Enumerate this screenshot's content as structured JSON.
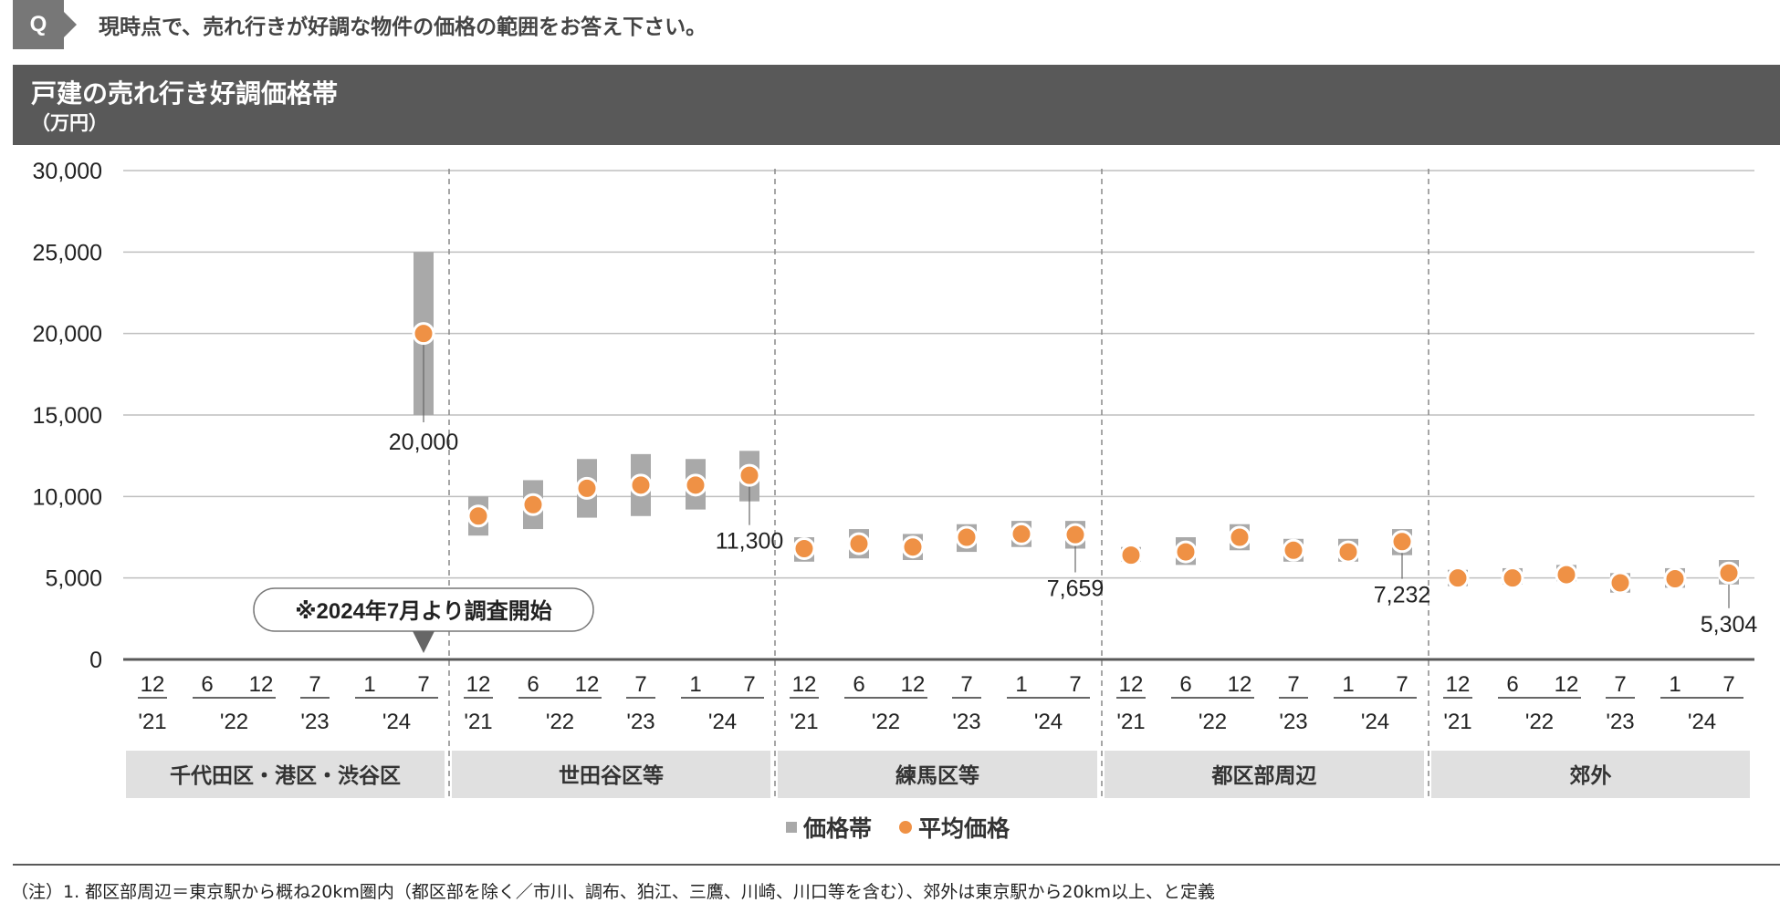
{
  "question": {
    "badge": "Q",
    "text": "現時点で、売れ行きが好調な物件の価格の範囲をお答え下さい。"
  },
  "header": {
    "title": "戸建の売れ行き好調価格帯",
    "unit": "（万円）"
  },
  "chart_data": {
    "type": "bar",
    "ylim": [
      0,
      30000
    ],
    "yticks": [
      "0",
      "5,000",
      "10,000",
      "15,000",
      "20,000",
      "25,000",
      "30,000"
    ],
    "grid": true,
    "legend_position": "bottom-center",
    "legend": {
      "range": "価格帯",
      "average": "平均価格"
    },
    "colors": {
      "range": "#a9a9a9",
      "average": "#ef9145"
    },
    "month_labels": [
      "12",
      "6",
      "12",
      "7",
      "1",
      "7"
    ],
    "year_labels": [
      "'21",
      "'22",
      "'23",
      "'24"
    ],
    "groups": [
      {
        "name": "千代田区・港区・渋谷区",
        "note": "※2024年7月より調査開始",
        "points": [
          null,
          null,
          null,
          null,
          null,
          {
            "low": 15000,
            "high": 25000,
            "avg": 20000,
            "label": "20,000"
          }
        ]
      },
      {
        "name": "世田谷区等",
        "points": [
          {
            "low": 7600,
            "high": 10000,
            "avg": 8800
          },
          {
            "low": 8000,
            "high": 11000,
            "avg": 9500
          },
          {
            "low": 8700,
            "high": 12300,
            "avg": 10500
          },
          {
            "low": 8800,
            "high": 12600,
            "avg": 10700
          },
          {
            "low": 9200,
            "high": 12300,
            "avg": 10700
          },
          {
            "low": 9700,
            "high": 12800,
            "avg": 11300,
            "label": "11,300"
          }
        ]
      },
      {
        "name": "練馬区等",
        "points": [
          {
            "low": 6000,
            "high": 7500,
            "avg": 6800
          },
          {
            "low": 6200,
            "high": 8000,
            "avg": 7100
          },
          {
            "low": 6100,
            "high": 7700,
            "avg": 6900
          },
          {
            "low": 6600,
            "high": 8300,
            "avg": 7500
          },
          {
            "low": 6900,
            "high": 8500,
            "avg": 7700
          },
          {
            "low": 6800,
            "high": 8500,
            "avg": 7659,
            "label": "7,659"
          }
        ]
      },
      {
        "name": "都区部周辺",
        "points": [
          {
            "low": 6000,
            "high": 6900,
            "avg": 6400
          },
          {
            "low": 5800,
            "high": 7500,
            "avg": 6600
          },
          {
            "low": 6700,
            "high": 8300,
            "avg": 7500
          },
          {
            "low": 6000,
            "high": 7400,
            "avg": 6700
          },
          {
            "low": 6000,
            "high": 7400,
            "avg": 6600
          },
          {
            "low": 6400,
            "high": 8000,
            "avg": 7232,
            "label": "7,232"
          }
        ]
      },
      {
        "name": "郊外",
        "points": [
          {
            "low": 4500,
            "high": 5500,
            "avg": 5000
          },
          {
            "low": 4600,
            "high": 5600,
            "avg": 5000
          },
          {
            "low": 4800,
            "high": 5800,
            "avg": 5200
          },
          {
            "low": 4100,
            "high": 5300,
            "avg": 4700
          },
          {
            "low": 4400,
            "high": 5600,
            "avg": 4950
          },
          {
            "low": 4600,
            "high": 6100,
            "avg": 5304,
            "label": "5,304"
          }
        ]
      }
    ]
  },
  "footnote": "（注）1.  都区部周辺＝東京駅から概ね20km圏内（都区部を除く／市川、調布、狛江、三鷹、川崎、川口等を含む）、郊外は東京駅から20km以上、と定義"
}
